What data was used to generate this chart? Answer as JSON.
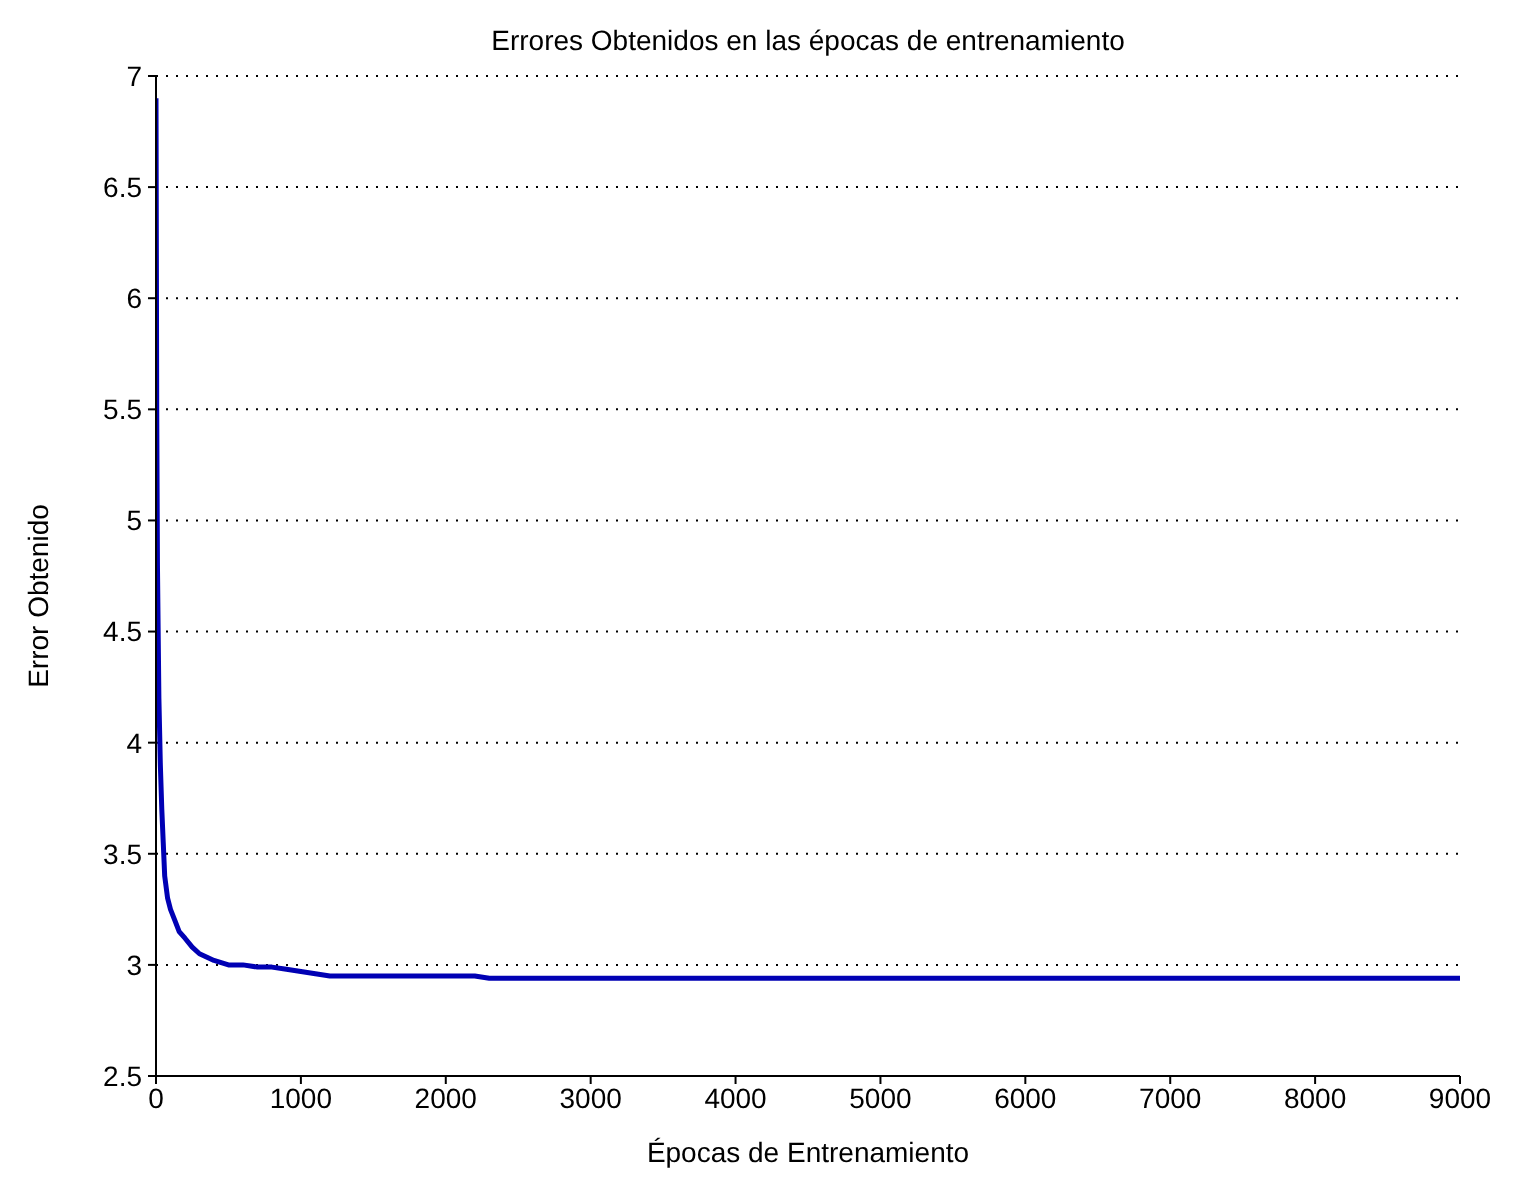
{
  "chart_data": {
    "type": "line",
    "title": "Errores Obtenidos en las épocas de entrenamiento",
    "xlabel": "Épocas de Entrenamiento",
    "ylabel": "Error Obtenido",
    "x": [
      0,
      5,
      10,
      20,
      30,
      40,
      50,
      60,
      80,
      100,
      130,
      160,
      200,
      250,
      300,
      400,
      500,
      600,
      700,
      800,
      900,
      1000,
      1100,
      1200,
      1500,
      1800,
      2000,
      2200,
      2300,
      3000,
      4000,
      5000,
      6000,
      7000,
      8000,
      9000
    ],
    "series": [
      {
        "color": "#0000b4",
        "values": [
          6.9,
          5.5,
          4.8,
          4.2,
          3.9,
          3.7,
          3.55,
          3.4,
          3.3,
          3.25,
          3.2,
          3.15,
          3.12,
          3.08,
          3.05,
          3.02,
          3.0,
          3.0,
          2.99,
          2.99,
          2.98,
          2.97,
          2.96,
          2.95,
          2.95,
          2.95,
          2.95,
          2.95,
          2.94,
          2.94,
          2.94,
          2.94,
          2.94,
          2.94,
          2.94,
          2.94
        ]
      }
    ],
    "xlim": [
      0,
      9000
    ],
    "xticks": [
      0,
      1000,
      2000,
      3000,
      4000,
      5000,
      6000,
      7000,
      8000,
      9000
    ],
    "ylim": [
      2.5,
      7
    ],
    "yticks": [
      2.5,
      3,
      3.5,
      4,
      4.5,
      5,
      5.5,
      6,
      6.5,
      7
    ],
    "grid": "y",
    "legend": false,
    "marker": "none",
    "line_style": "solid"
  }
}
